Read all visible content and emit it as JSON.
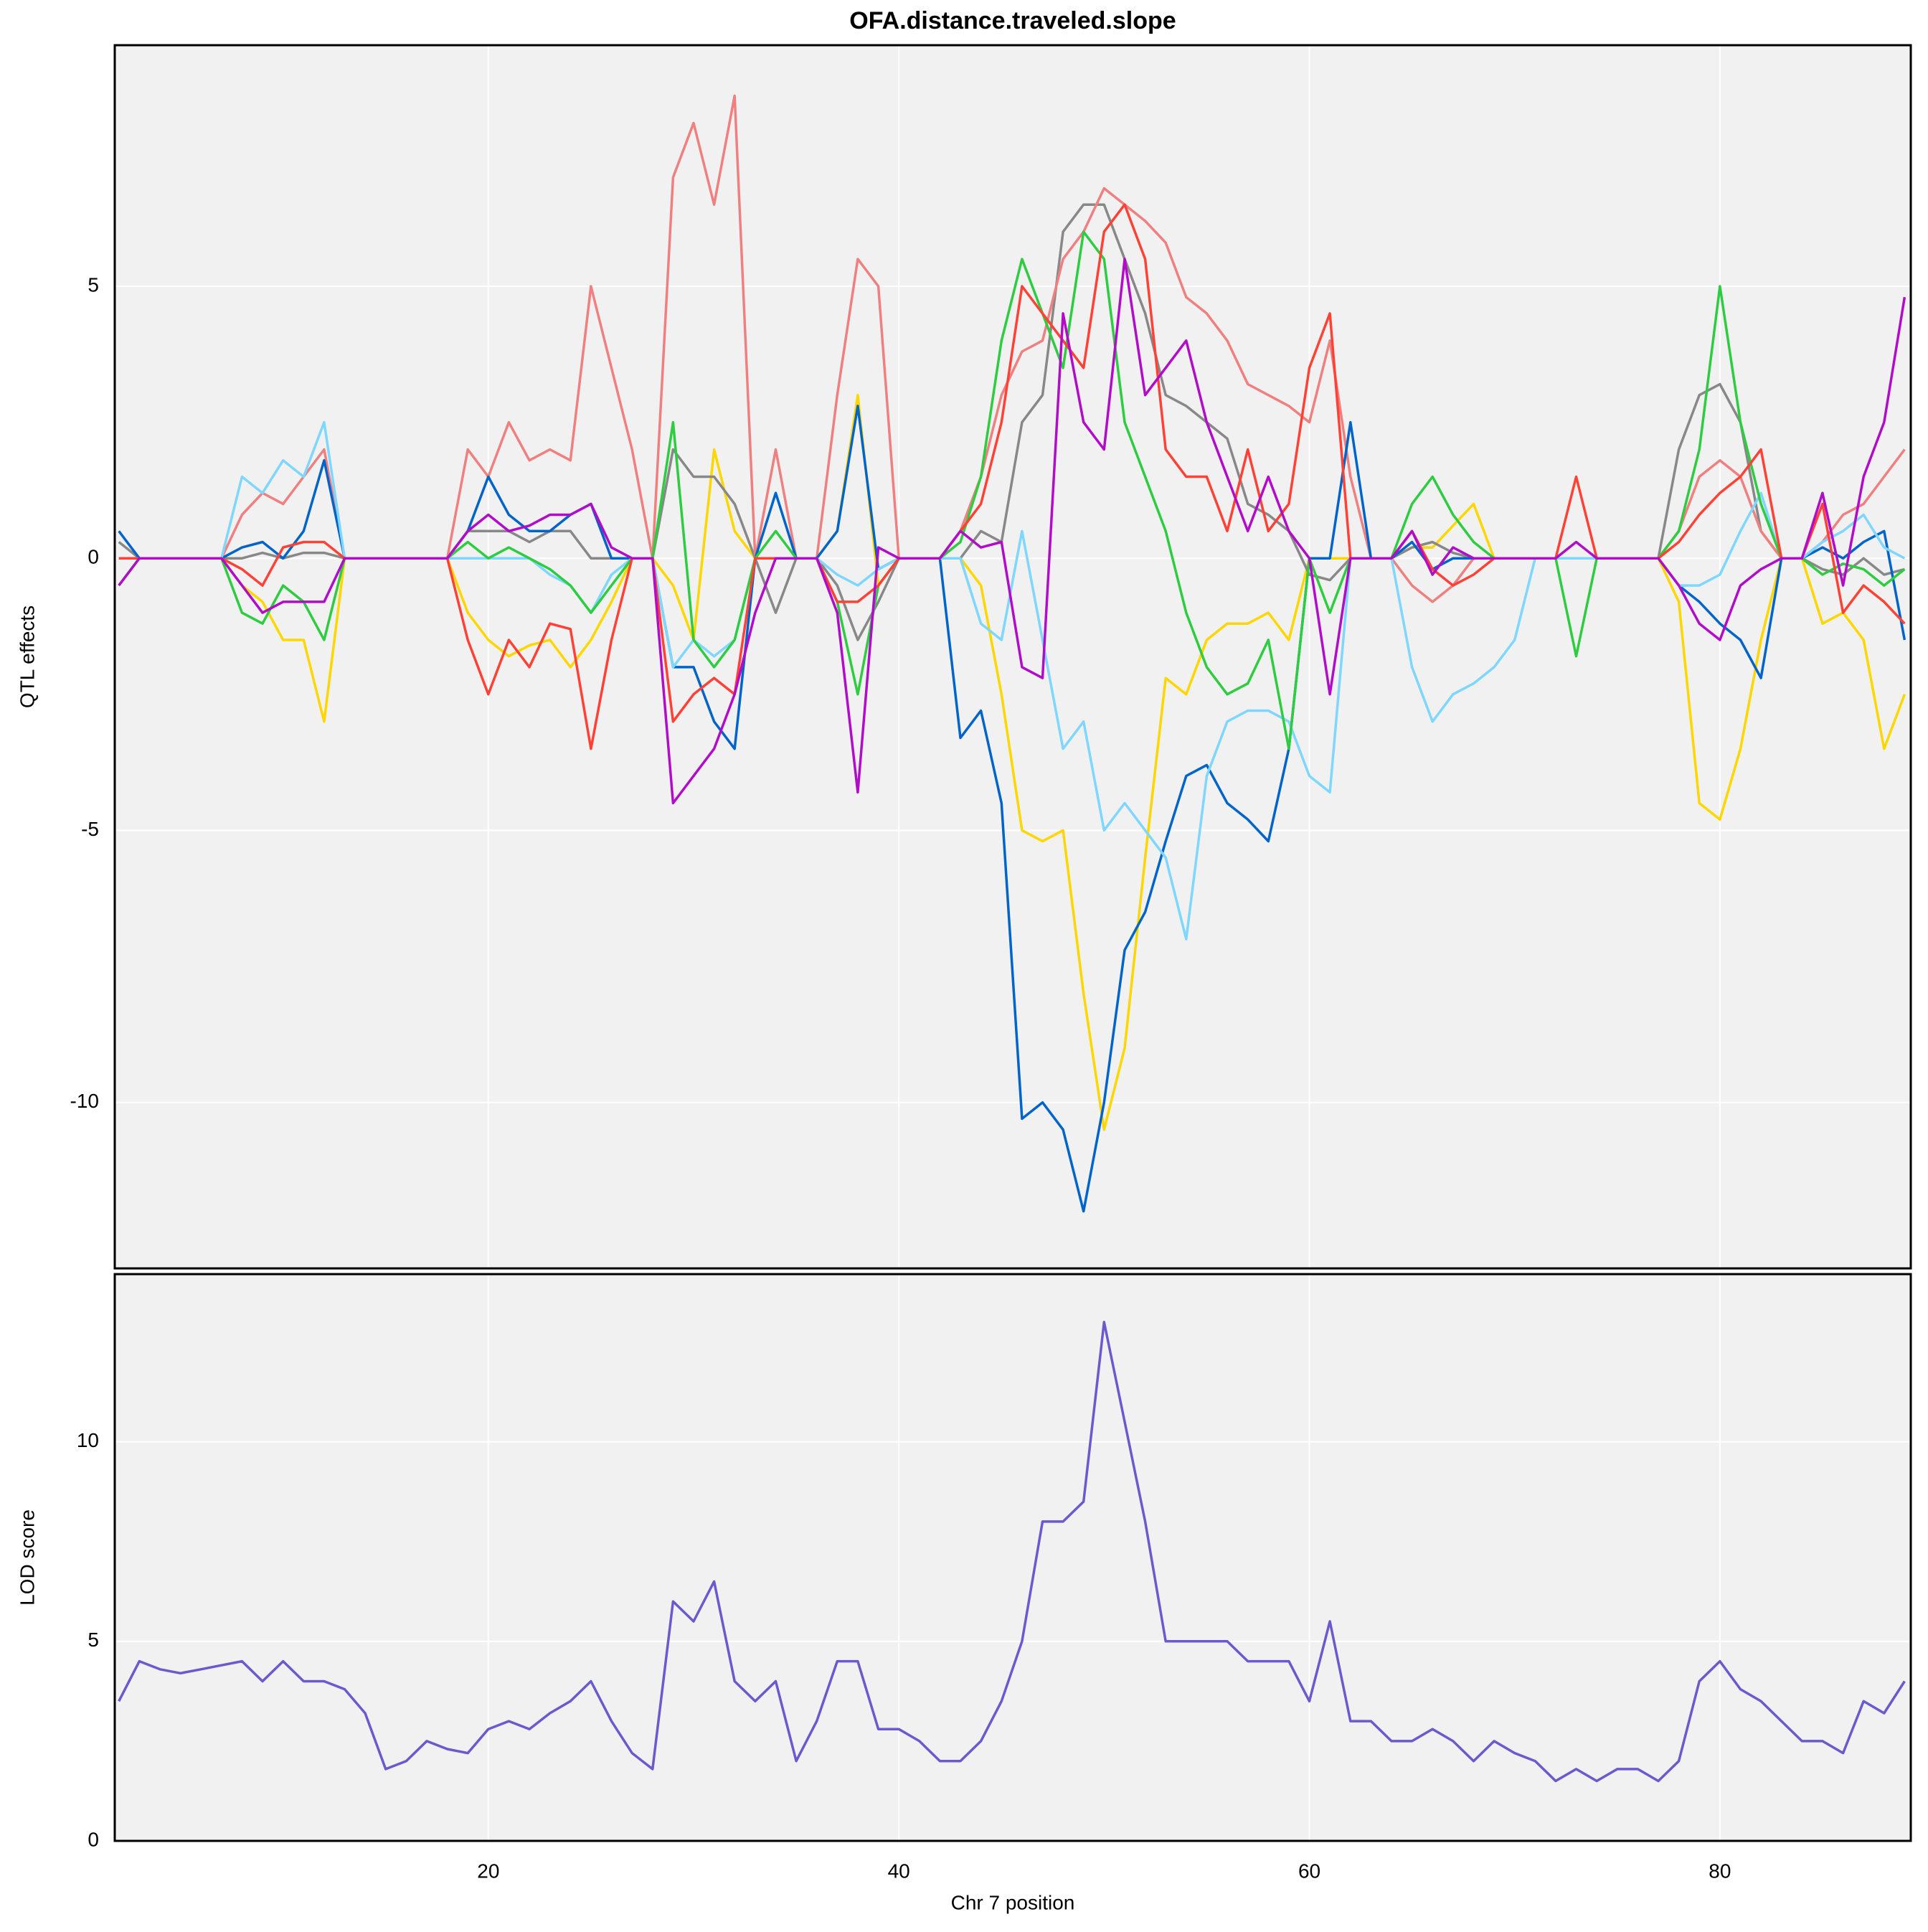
{
  "chart_data": [
    {
      "type": "line",
      "title": "OFA.distance.traveled.slope",
      "ylabel": "QTL effects",
      "x": [
        2,
        3,
        4,
        5,
        6,
        7,
        8,
        9,
        10,
        11,
        12,
        13,
        14,
        15,
        16,
        17,
        18,
        19,
        20,
        21,
        22,
        23,
        24,
        25,
        26,
        27,
        28,
        29,
        30,
        31,
        32,
        33,
        34,
        35,
        36,
        37,
        38,
        39,
        40,
        41,
        42,
        43,
        44,
        45,
        46,
        47,
        48,
        49,
        50,
        51,
        52,
        53,
        54,
        55,
        56,
        57,
        58,
        59,
        60,
        61,
        62,
        63,
        64,
        65,
        66,
        67,
        68,
        69,
        70,
        71,
        72,
        73,
        74,
        75,
        76,
        77,
        78,
        79,
        80,
        81,
        82,
        83,
        84,
        85,
        86,
        87,
        88,
        89
      ],
      "xlim": [
        1.8,
        89.3
      ],
      "ylim": [
        -13.05,
        9.43
      ],
      "yticks": [
        -10,
        -5,
        0,
        5
      ],
      "grid": true,
      "series": [
        {
          "color": "#ffd700",
          "values": [
            0,
            0,
            0,
            0,
            0,
            0,
            -0.5,
            -0.8,
            -1.5,
            -1.5,
            -3,
            0,
            0,
            0,
            0,
            0,
            0,
            -1,
            -1.5,
            -1.8,
            -1.6,
            -1.5,
            -2,
            -1.5,
            -0.8,
            0,
            0,
            -0.5,
            -1.5,
            2,
            0.5,
            0,
            0,
            0,
            0,
            0.5,
            3,
            -0.5,
            0,
            0,
            0,
            0,
            -0.5,
            -2.5,
            -5,
            -5.2,
            -5,
            -8,
            -10.5,
            -9,
            -5.5,
            -2.2,
            -2.5,
            -1.5,
            -1.2,
            -1.2,
            -1,
            -1.5,
            0,
            0,
            0,
            0,
            0,
            0.2,
            0.2,
            0.6,
            1,
            0,
            0,
            0,
            0,
            0,
            0,
            0,
            0,
            0,
            -0.8,
            -4.5,
            -4.8,
            -3.5,
            -1.5,
            0,
            0,
            -1.2,
            -1,
            -1.5,
            -3.5,
            -2.5
          ]
        },
        {
          "color": "#888888",
          "values": [
            0.3,
            0,
            0,
            0,
            0,
            0,
            0,
            0.1,
            0,
            0.1,
            0.1,
            0,
            0,
            0,
            0,
            0,
            0,
            0.5,
            0.5,
            0.5,
            0.3,
            0.5,
            0.5,
            0,
            0,
            0,
            0,
            2,
            1.5,
            1.5,
            1,
            0,
            -1,
            0,
            0,
            -0.5,
            -1.5,
            -0.8,
            0,
            0,
            0,
            0,
            0.5,
            0.3,
            2.5,
            3,
            6,
            6.5,
            6.5,
            5.5,
            4.5,
            3,
            2.8,
            2.5,
            2.2,
            1,
            0.8,
            0.5,
            -0.3,
            -0.4,
            0,
            0,
            0,
            0.2,
            0.3,
            0.1,
            0,
            0,
            0,
            0,
            0,
            0,
            0,
            0,
            0,
            0,
            2,
            3,
            3.2,
            2.5,
            0.5,
            0,
            0,
            -0.2,
            -0.3,
            0,
            -0.3,
            -0.2
          ]
        },
        {
          "color": "#f08080",
          "values": [
            0,
            0,
            0,
            0,
            0,
            0,
            0.8,
            1.2,
            1,
            1.5,
            2,
            0,
            0,
            0,
            0,
            0,
            0,
            2,
            1.5,
            2.5,
            1.8,
            2,
            1.8,
            5,
            3.5,
            2,
            0,
            7,
            8,
            6.5,
            8.5,
            0,
            2,
            0,
            0,
            3,
            5.5,
            5,
            0,
            0,
            0,
            0.5,
            1.5,
            3,
            3.8,
            4,
            5.5,
            6,
            6.8,
            6.5,
            6.2,
            5.8,
            4.8,
            4.5,
            4,
            3.2,
            3,
            2.8,
            2.5,
            4,
            1.5,
            0,
            0,
            -0.5,
            -0.8,
            -0.5,
            0,
            0,
            0,
            0,
            0,
            0,
            0,
            0,
            0,
            0,
            0.5,
            1.5,
            1.8,
            1.5,
            0.5,
            0,
            0,
            0.3,
            0.8,
            1,
            1.5,
            2
          ]
        },
        {
          "color": "#0064c9",
          "values": [
            0.5,
            0,
            0,
            0,
            0,
            0,
            0.2,
            0.3,
            0,
            0.5,
            1.8,
            0,
            0,
            0,
            0,
            0,
            0,
            0.5,
            1.5,
            0.8,
            0.5,
            0.5,
            0.8,
            1,
            0,
            0,
            0,
            -2,
            -2,
            -3,
            -3.5,
            0,
            1.2,
            0,
            0,
            0.5,
            2.8,
            -0.2,
            0,
            0,
            0,
            -3.3,
            -2.8,
            -4.5,
            -10.3,
            -10,
            -10.5,
            -12,
            -10,
            -7.2,
            -6.5,
            -5.2,
            -4,
            -3.8,
            -4.5,
            -4.8,
            -5.2,
            -3.5,
            0,
            0,
            2.5,
            0,
            0,
            0.3,
            -0.2,
            0,
            0,
            0,
            0,
            0,
            0,
            0,
            0,
            0,
            0,
            0,
            -0.5,
            -0.8,
            -1.2,
            -1.5,
            -2.2,
            0,
            0,
            0.2,
            0,
            0.3,
            0.5,
            -1.5
          ]
        },
        {
          "color": "#7fd7ff",
          "values": [
            0,
            0,
            0,
            0,
            0,
            0,
            1.5,
            1.2,
            1.8,
            1.5,
            2.5,
            0,
            0,
            0,
            0,
            0,
            0,
            0,
            0,
            0,
            0,
            -0.3,
            -0.5,
            -1,
            -0.3,
            0,
            0,
            -2,
            -1.5,
            -1.8,
            -1.5,
            0,
            0,
            0,
            0,
            -0.3,
            -0.5,
            -0.2,
            0,
            0,
            0,
            0,
            -1.2,
            -1.5,
            0.5,
            -1.5,
            -3.5,
            -3,
            -5,
            -4.5,
            -5,
            -5.5,
            -7,
            -4,
            -3,
            -2.8,
            -2.8,
            -3,
            -4,
            -4.3,
            0,
            0,
            0,
            -2,
            -3,
            -2.5,
            -2.3,
            -2,
            -1.5,
            0,
            0,
            0,
            0,
            0,
            0,
            0,
            -0.5,
            -0.5,
            -0.3,
            0.5,
            1.2,
            0,
            0,
            0.3,
            0.5,
            0.8,
            0.2,
            0
          ]
        },
        {
          "color": "#2ecc40",
          "values": [
            -0.5,
            0,
            0,
            0,
            0,
            0,
            -1,
            -1.2,
            -0.5,
            -0.8,
            -1.5,
            0,
            0,
            0,
            0,
            0,
            0,
            0.3,
            0,
            0.2,
            0,
            -0.2,
            -0.5,
            -1,
            -0.5,
            0,
            0,
            2.5,
            -1.5,
            -2,
            -1.5,
            0,
            0.5,
            0,
            0,
            -0.8,
            -2.5,
            -0.5,
            0,
            0,
            0,
            0.3,
            1.5,
            4,
            5.5,
            4.5,
            3.5,
            6,
            5.5,
            2.5,
            1.5,
            0.5,
            -1,
            -2,
            -2.5,
            -2.3,
            -1.5,
            -3.5,
            0,
            -1,
            0,
            0,
            0,
            1,
            1.5,
            0.8,
            0.3,
            0,
            0,
            0,
            0,
            -1.8,
            0,
            0,
            0,
            0,
            0.5,
            2,
            5,
            2.5,
            1,
            0,
            0,
            -0.3,
            -0.1,
            -0.2,
            -0.5,
            -0.2
          ]
        },
        {
          "color": "#ff4136",
          "values": [
            0,
            0,
            0,
            0,
            0,
            0,
            -0.2,
            -0.5,
            0.2,
            0.3,
            0.3,
            0,
            0,
            0,
            0,
            0,
            0,
            -1.5,
            -2.5,
            -1.5,
            -2,
            -1.2,
            -1.3,
            -3.5,
            -1.5,
            0,
            0,
            -3,
            -2.5,
            -2.2,
            -2.5,
            0,
            0,
            0,
            0,
            -0.8,
            -0.8,
            -0.5,
            0,
            0,
            0,
            0.5,
            1,
            2.5,
            5,
            4.5,
            4,
            3.5,
            6,
            6.5,
            5.5,
            2,
            1.5,
            1.5,
            0.5,
            2,
            0.5,
            1,
            3.5,
            4.5,
            0,
            0,
            0,
            0.5,
            -0.2,
            -0.5,
            -0.3,
            0,
            0,
            0,
            0,
            1.5,
            0,
            0,
            0,
            0,
            0.3,
            0.8,
            1.2,
            1.5,
            2,
            0,
            0,
            1,
            -1,
            -0.5,
            -0.8,
            -1.2
          ]
        },
        {
          "color": "#b10dc9",
          "values": [
            -0.5,
            0,
            0,
            0,
            0,
            0,
            -0.5,
            -1,
            -0.8,
            -0.8,
            -0.8,
            0,
            0,
            0,
            0,
            0,
            0,
            0.5,
            0.8,
            0.5,
            0.6,
            0.8,
            0.8,
            1,
            0.2,
            0,
            0,
            -4.5,
            -4,
            -3.5,
            -2.5,
            -1,
            0,
            0,
            0,
            -1,
            -4.3,
            0.2,
            0,
            0,
            0,
            0.5,
            0.2,
            0.3,
            -2,
            -2.2,
            4.5,
            2.5,
            2,
            5.5,
            3,
            3.5,
            4,
            2.5,
            1.5,
            0.5,
            1.5,
            0.5,
            0,
            -2.5,
            0,
            0,
            0,
            0.5,
            -0.3,
            0.2,
            0,
            0,
            0,
            0,
            0,
            0.3,
            0,
            0,
            0,
            0,
            -0.5,
            -1.2,
            -1.5,
            -0.5,
            -0.2,
            0,
            0,
            1.2,
            -0.5,
            1.5,
            2.5,
            4.8
          ]
        }
      ]
    },
    {
      "type": "line",
      "ylabel": "LOD score",
      "xlabel": "Chr 7 position",
      "x": [
        2,
        3,
        4,
        5,
        6,
        7,
        8,
        9,
        10,
        11,
        12,
        13,
        14,
        15,
        16,
        17,
        18,
        19,
        20,
        21,
        22,
        23,
        24,
        25,
        26,
        27,
        28,
        29,
        30,
        31,
        32,
        33,
        34,
        35,
        36,
        37,
        38,
        39,
        40,
        41,
        42,
        43,
        44,
        45,
        46,
        47,
        48,
        49,
        50,
        51,
        52,
        53,
        54,
        55,
        56,
        57,
        58,
        59,
        60,
        61,
        62,
        63,
        64,
        65,
        66,
        67,
        68,
        69,
        70,
        71,
        72,
        73,
        74,
        75,
        76,
        77,
        78,
        79,
        80,
        81,
        82,
        83,
        84,
        85,
        86,
        87,
        88,
        89
      ],
      "xlim": [
        1.8,
        89.3
      ],
      "xticks": [
        20,
        40,
        60,
        80
      ],
      "ylim": [
        0,
        14.2
      ],
      "yticks": [
        0,
        5,
        10
      ],
      "grid": true,
      "series": [
        {
          "color": "#6a5acd",
          "values": [
            3.5,
            4.5,
            4.3,
            4.2,
            4.3,
            4.4,
            4.5,
            4,
            4.5,
            4,
            4,
            3.8,
            3.2,
            1.8,
            2,
            2.5,
            2.3,
            2.2,
            2.8,
            3,
            2.8,
            3.2,
            3.5,
            4,
            3,
            2.2,
            1.8,
            6,
            5.5,
            6.5,
            4,
            3.5,
            4,
            2,
            3,
            4.5,
            4.5,
            2.8,
            2.8,
            2.5,
            2,
            2,
            2.5,
            3.5,
            5,
            8,
            8,
            8.5,
            13,
            10.5,
            8,
            5,
            5,
            5,
            5,
            4.5,
            4.5,
            4.5,
            3.5,
            5.5,
            3,
            3,
            2.5,
            2.5,
            2.8,
            2.5,
            2,
            2.5,
            2.2,
            2,
            1.5,
            1.8,
            1.5,
            1.8,
            1.8,
            1.5,
            2,
            4,
            4.5,
            3.8,
            3.5,
            3,
            2.5,
            2.5,
            2.2,
            3.5,
            3.2,
            4
          ]
        }
      ]
    }
  ]
}
